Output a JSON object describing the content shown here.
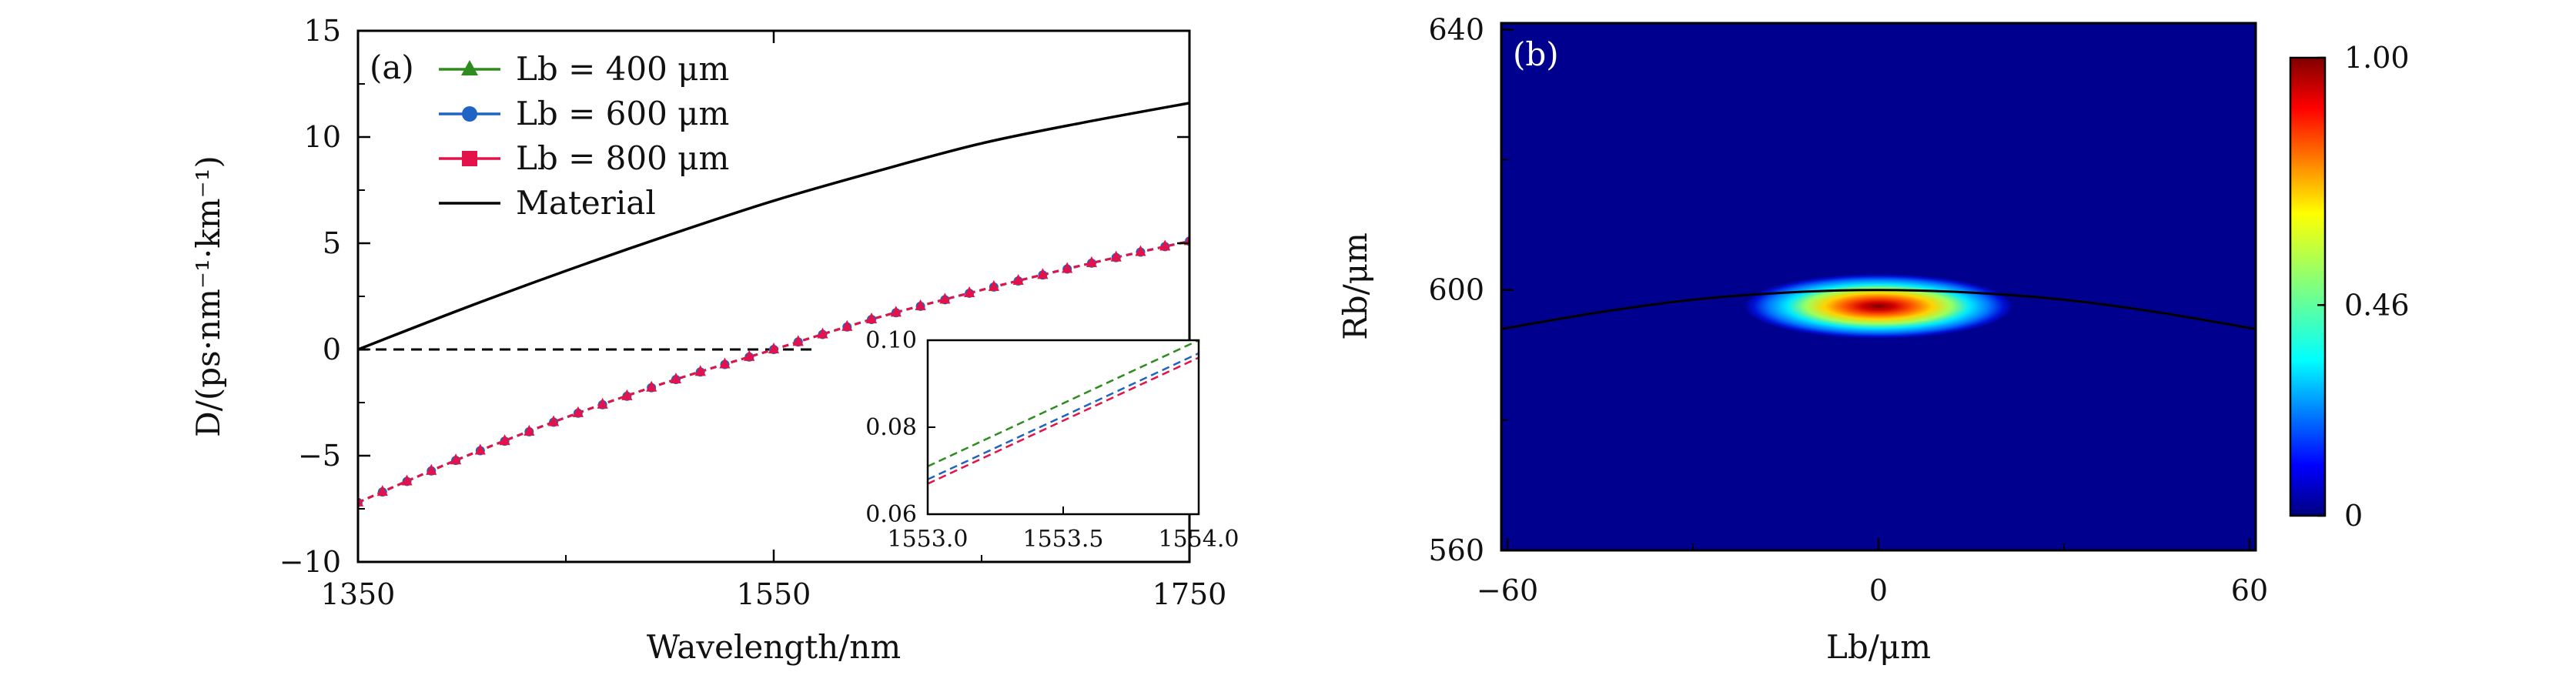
{
  "chart_data": [
    {
      "panel_label": "(a)",
      "type": "line",
      "xlabel": "Wavelength/nm",
      "ylabel": "D/(ps·nm⁻¹·km⁻¹)",
      "xlim": [
        1350,
        1750
      ],
      "ylim": [
        -10,
        15
      ],
      "xticks": [
        1350,
        1550,
        1750
      ],
      "yticks": [
        -10,
        -5,
        0,
        5,
        10,
        15
      ],
      "xtick_labels": [
        "1350",
        "1550",
        "1750"
      ],
      "ytick_labels": [
        "−10",
        "−5",
        "0",
        "5",
        "10",
        "15"
      ],
      "legend": [
        {
          "label": "Lb = 400 μm",
          "color": "#2e8b1e",
          "marker": "triangle"
        },
        {
          "label": "Lb = 600 μm",
          "color": "#1f63c4",
          "marker": "circle"
        },
        {
          "label": "Lb = 800 μm",
          "color": "#e4124b",
          "marker": "square"
        },
        {
          "label": "Material",
          "color": "#000000",
          "marker": "none"
        }
      ],
      "series": [
        {
          "name": "Lb = 400 μm",
          "color": "#2e8b1e",
          "x": [
            1350,
            1400,
            1450,
            1500,
            1550,
            1600,
            1650,
            1700,
            1750
          ],
          "y": [
            -7.2,
            -5.1,
            -3.2,
            -1.5,
            0.0,
            1.5,
            2.8,
            4.0,
            5.1
          ]
        },
        {
          "name": "Lb = 600 μm",
          "color": "#1f63c4",
          "x": [
            1350,
            1400,
            1450,
            1500,
            1550,
            1600,
            1650,
            1700,
            1750
          ],
          "y": [
            -7.2,
            -5.1,
            -3.2,
            -1.5,
            0.0,
            1.5,
            2.8,
            4.0,
            5.1
          ]
        },
        {
          "name": "Lb = 800 μm",
          "color": "#e4124b",
          "x": [
            1350,
            1400,
            1450,
            1500,
            1550,
            1600,
            1650,
            1700,
            1750
          ],
          "y": [
            -7.2,
            -5.1,
            -3.2,
            -1.5,
            0.0,
            1.5,
            2.8,
            4.0,
            5.1
          ]
        },
        {
          "name": "Material",
          "color": "#000000",
          "x": [
            1350,
            1400,
            1450,
            1500,
            1550,
            1600,
            1650,
            1700,
            1750
          ],
          "y": [
            0.0,
            1.9,
            3.7,
            5.4,
            7.0,
            8.4,
            9.7,
            10.7,
            11.6
          ]
        }
      ],
      "reference_line": {
        "y": 0,
        "x_range": [
          1350,
          1570
        ],
        "style": "dashed"
      },
      "inset": {
        "xlim": [
          1553.0,
          1554.0
        ],
        "ylim": [
          0.06,
          0.1
        ],
        "xticks": [
          1553.0,
          1553.5,
          1554.0
        ],
        "yticks": [
          0.06,
          0.08,
          0.1
        ],
        "xtick_labels": [
          "1553.0",
          "1553.5",
          "1554.0"
        ],
        "ytick_labels": [
          "0.06",
          "0.08",
          "0.10"
        ],
        "series": [
          {
            "name": "Lb = 400 μm",
            "color": "#2e8b1e",
            "x": [
              1553.0,
              1554.0
            ],
            "y": [
              0.071,
              0.1
            ]
          },
          {
            "name": "Lb = 600 μm",
            "color": "#1f63c4",
            "x": [
              1553.0,
              1554.0
            ],
            "y": [
              0.068,
              0.097
            ]
          },
          {
            "name": "Lb = 800 μm",
            "color": "#e4124b",
            "x": [
              1553.0,
              1554.0
            ],
            "y": [
              0.067,
              0.096
            ]
          }
        ]
      }
    },
    {
      "panel_label": "(b)",
      "type": "heatmap",
      "xlabel": "Lb/μm",
      "ylabel": "Rb/μm",
      "xlim": [
        -61,
        61
      ],
      "ylim": [
        560,
        641
      ],
      "xticks": [
        -60,
        0,
        60
      ],
      "yticks": [
        560,
        600,
        640
      ],
      "xtick_labels": [
        "−60",
        "0",
        "60"
      ],
      "ytick_labels": [
        "560",
        "600",
        "640"
      ],
      "colorbar": {
        "min": 0,
        "max": 1.0,
        "ticks": [
          0,
          0.46,
          1.0
        ],
        "tick_labels": [
          "0",
          "0.46",
          "1.00"
        ],
        "colormap": "jet"
      },
      "hotspot": {
        "center_x": 0,
        "center_y": 597.5,
        "sigma_x": 14,
        "sigma_y": 3.2,
        "peak": 1.0
      },
      "curve": {
        "x": [
          -61,
          -45,
          -30,
          -15,
          0,
          15,
          30,
          45,
          61
        ],
        "y": [
          594.0,
          596.6,
          598.5,
          599.6,
          600.0,
          599.6,
          598.5,
          596.6,
          594.0
        ]
      }
    }
  ]
}
